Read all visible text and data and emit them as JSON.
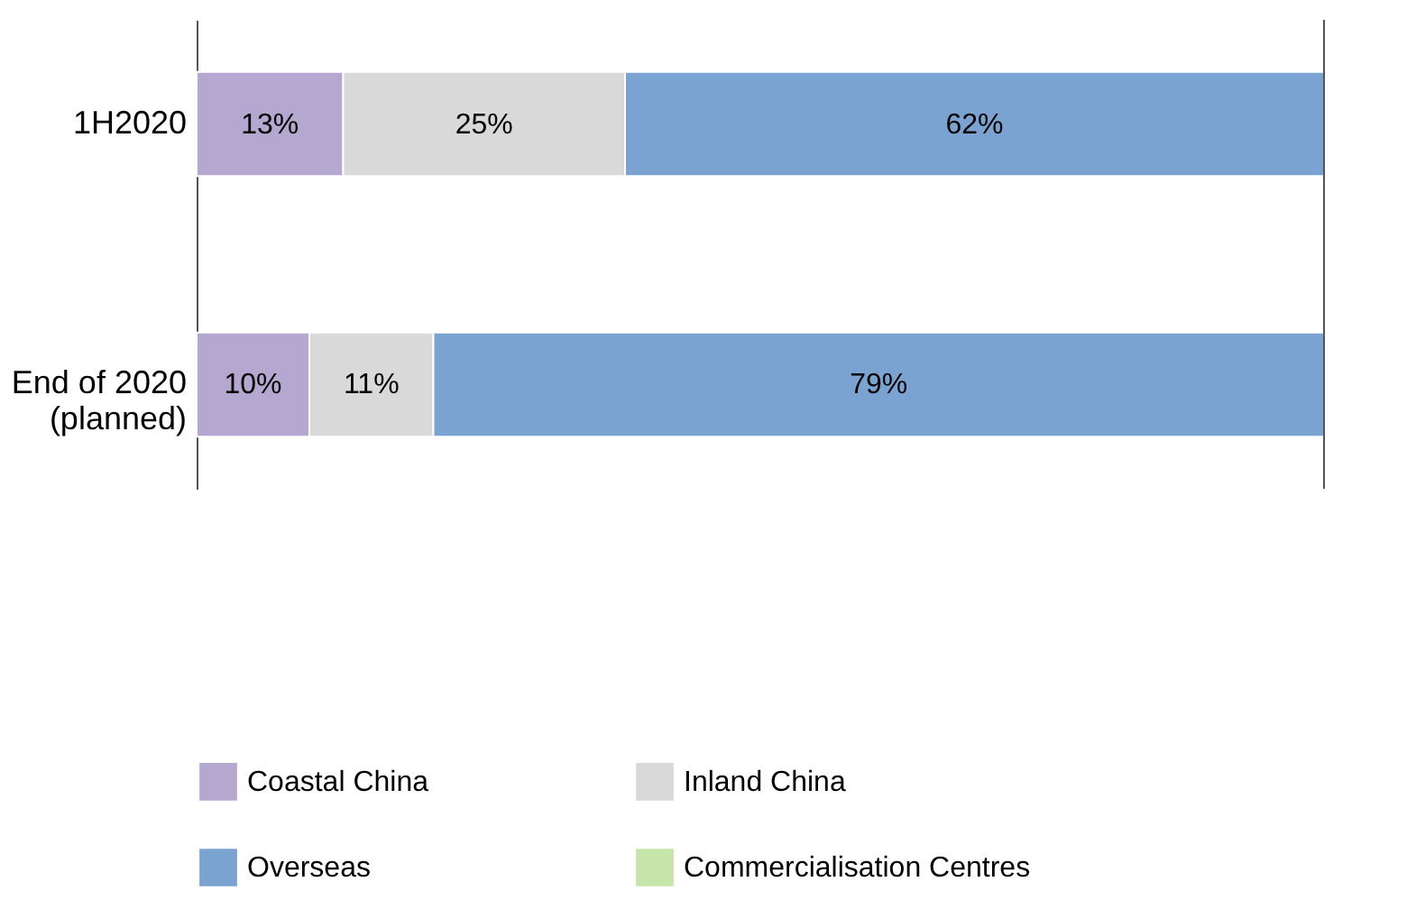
{
  "chart_data": {
    "type": "bar",
    "orientation": "horizontal",
    "stacked": true,
    "categories": [
      "1H2020",
      "End of 2020\n(planned)"
    ],
    "series": [
      {
        "name": "Coastal China",
        "color": "#b4a7d0",
        "values": [
          13,
          10
        ],
        "value_labels": [
          "13%",
          "10%"
        ]
      },
      {
        "name": "Inland China",
        "color": "#d9d9d9",
        "values": [
          25,
          11
        ],
        "value_labels": [
          "25%",
          "11%"
        ]
      },
      {
        "name": "Overseas",
        "color": "#7ba3d2",
        "values": [
          62,
          79
        ],
        "value_labels": [
          "62%",
          "79%"
        ]
      },
      {
        "name": "Commercialisation Centres",
        "color": "#c6e5a8",
        "values": [
          null,
          null
        ]
      }
    ],
    "legend": "bottom"
  }
}
